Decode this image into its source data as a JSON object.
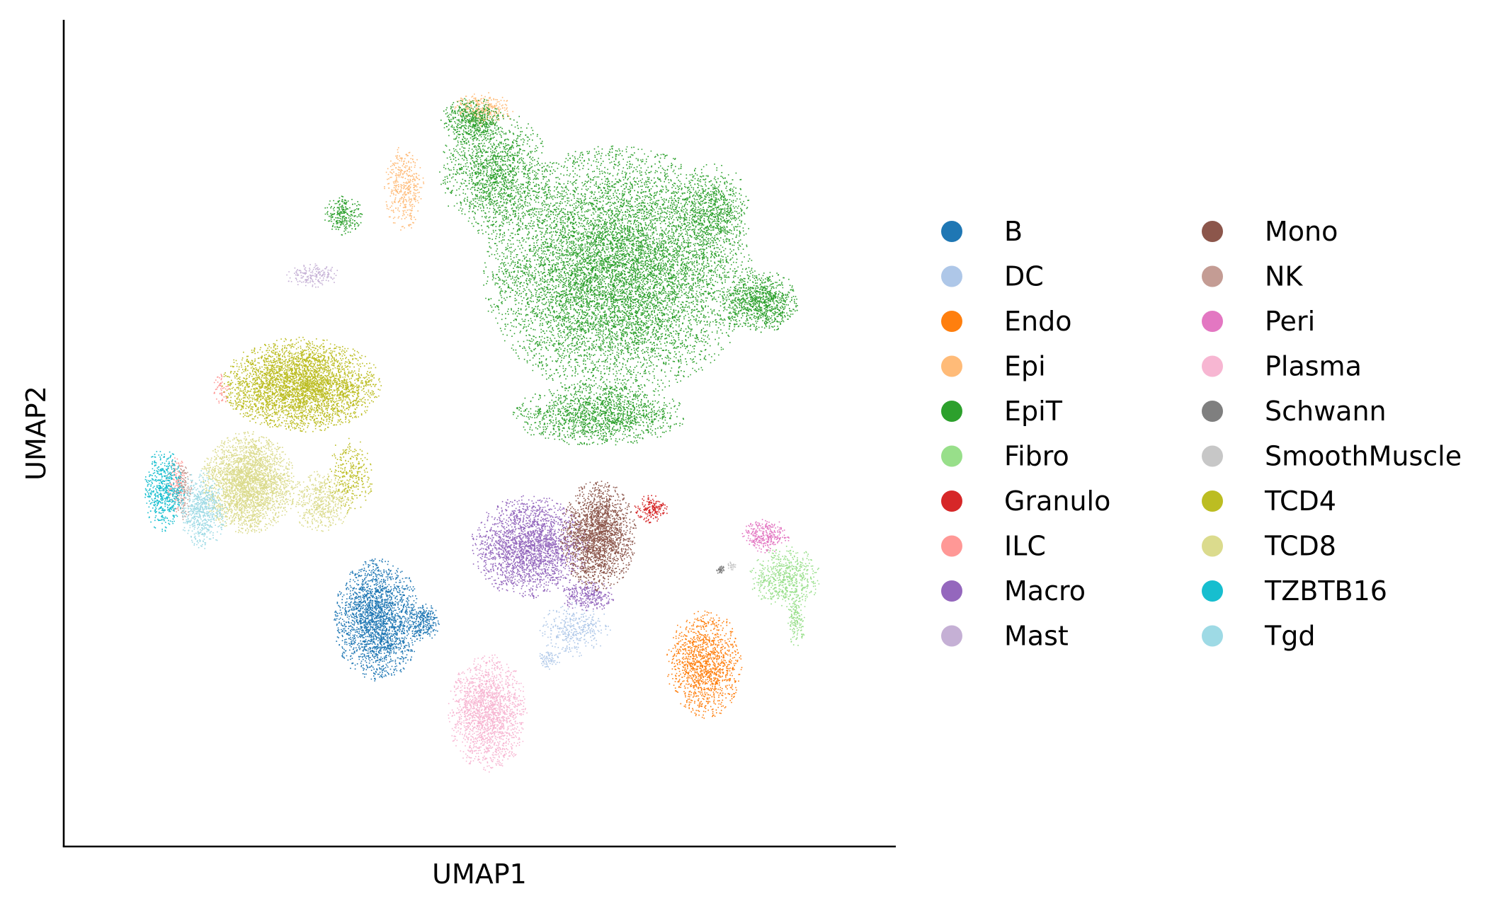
{
  "chart_data": {
    "type": "scatter",
    "xlabel": "UMAP1",
    "ylabel": "UMAP2",
    "xlim": [
      0,
      1
    ],
    "ylim": [
      0,
      1
    ],
    "grid": false,
    "ticks_shown": false,
    "legend_placement": "right",
    "legend_columns": 2,
    "series": [
      {
        "name": "B",
        "color": "#1f77b4",
        "clusters": [
          {
            "cx": 0.365,
            "cy": 0.258,
            "rx": 0.055,
            "ry": 0.078,
            "n": 2300
          },
          {
            "cx": 0.425,
            "cy": 0.255,
            "rx": 0.02,
            "ry": 0.025,
            "n": 250
          }
        ]
      },
      {
        "name": "DC",
        "color": "#aec7e8",
        "clusters": [
          {
            "cx": 0.625,
            "cy": 0.245,
            "rx": 0.045,
            "ry": 0.035,
            "n": 350
          },
          {
            "cx": 0.59,
            "cy": 0.205,
            "rx": 0.015,
            "ry": 0.012,
            "n": 70
          }
        ]
      },
      {
        "name": "Endo",
        "color": "#ff7f0e",
        "clusters": [
          {
            "cx": 0.795,
            "cy": 0.2,
            "rx": 0.048,
            "ry": 0.07,
            "n": 1300
          }
        ]
      },
      {
        "name": "Epi",
        "color": "#ffbb78",
        "clusters": [
          {
            "cx": 0.4,
            "cy": 0.83,
            "rx": 0.025,
            "ry": 0.055,
            "n": 400
          },
          {
            "cx": 0.505,
            "cy": 0.935,
            "rx": 0.04,
            "ry": 0.022,
            "n": 300
          }
        ]
      },
      {
        "name": "EpiT",
        "color": "#2ca02c",
        "clusters": [
          {
            "cx": 0.68,
            "cy": 0.72,
            "rx": 0.17,
            "ry": 0.16,
            "n": 9000
          },
          {
            "cx": 0.52,
            "cy": 0.85,
            "rx": 0.07,
            "ry": 0.08,
            "n": 1500
          },
          {
            "cx": 0.87,
            "cy": 0.68,
            "rx": 0.05,
            "ry": 0.04,
            "n": 900
          },
          {
            "cx": 0.655,
            "cy": 0.53,
            "rx": 0.11,
            "ry": 0.04,
            "n": 1500
          },
          {
            "cx": 0.805,
            "cy": 0.8,
            "rx": 0.05,
            "ry": 0.06,
            "n": 700
          },
          {
            "cx": 0.49,
            "cy": 0.92,
            "rx": 0.04,
            "ry": 0.03,
            "n": 500
          },
          {
            "cx": 0.32,
            "cy": 0.795,
            "rx": 0.025,
            "ry": 0.025,
            "n": 250
          }
        ]
      },
      {
        "name": "Fibro",
        "color": "#98df8a",
        "clusters": [
          {
            "cx": 0.9,
            "cy": 0.315,
            "rx": 0.045,
            "ry": 0.04,
            "n": 600
          },
          {
            "cx": 0.915,
            "cy": 0.26,
            "rx": 0.012,
            "ry": 0.035,
            "n": 150
          }
        ]
      },
      {
        "name": "Granulo",
        "color": "#d62728",
        "clusters": [
          {
            "cx": 0.725,
            "cy": 0.405,
            "rx": 0.022,
            "ry": 0.018,
            "n": 180
          }
        ]
      },
      {
        "name": "ILC",
        "color": "#ff9896",
        "clusters": [
          {
            "cx": 0.1,
            "cy": 0.44,
            "rx": 0.012,
            "ry": 0.04,
            "n": 150
          },
          {
            "cx": 0.16,
            "cy": 0.565,
            "rx": 0.01,
            "ry": 0.02,
            "n": 60
          }
        ]
      },
      {
        "name": "Macro",
        "color": "#9467bd",
        "clusters": [
          {
            "cx": 0.565,
            "cy": 0.355,
            "rx": 0.075,
            "ry": 0.065,
            "n": 2300
          },
          {
            "cx": 0.64,
            "cy": 0.29,
            "rx": 0.035,
            "ry": 0.02,
            "n": 300
          }
        ]
      },
      {
        "name": "Mast",
        "color": "#c5b0d5",
        "clusters": [
          {
            "cx": 0.28,
            "cy": 0.715,
            "rx": 0.035,
            "ry": 0.015,
            "n": 180
          }
        ]
      },
      {
        "name": "Mono",
        "color": "#8c564b",
        "clusters": [
          {
            "cx": 0.655,
            "cy": 0.37,
            "rx": 0.048,
            "ry": 0.07,
            "n": 2000
          }
        ]
      },
      {
        "name": "NK",
        "color": "#c49c94",
        "clusters": [
          {
            "cx": 0.11,
            "cy": 0.43,
            "rx": 0.012,
            "ry": 0.04,
            "n": 150
          }
        ]
      },
      {
        "name": "Peri",
        "color": "#e377c2",
        "clusters": [
          {
            "cx": 0.875,
            "cy": 0.37,
            "rx": 0.03,
            "ry": 0.022,
            "n": 300
          }
        ]
      },
      {
        "name": "Plasma",
        "color": "#f7b6d2",
        "clusters": [
          {
            "cx": 0.51,
            "cy": 0.135,
            "rx": 0.05,
            "ry": 0.075,
            "n": 1800
          }
        ]
      },
      {
        "name": "Schwann",
        "color": "#7f7f7f",
        "clusters": [
          {
            "cx": 0.815,
            "cy": 0.325,
            "rx": 0.006,
            "ry": 0.006,
            "n": 40
          }
        ]
      },
      {
        "name": "SmoothMuscle",
        "color": "#c7c7c7",
        "clusters": [
          {
            "cx": 0.83,
            "cy": 0.33,
            "rx": 0.006,
            "ry": 0.006,
            "n": 30
          }
        ]
      },
      {
        "name": "TCD4",
        "color": "#bcbd22",
        "clusters": [
          {
            "cx": 0.265,
            "cy": 0.57,
            "rx": 0.1,
            "ry": 0.06,
            "n": 3800
          },
          {
            "cx": 0.33,
            "cy": 0.45,
            "rx": 0.03,
            "ry": 0.05,
            "n": 300
          }
        ]
      },
      {
        "name": "TCD8",
        "color": "#dbdb8d",
        "clusters": [
          {
            "cx": 0.195,
            "cy": 0.44,
            "rx": 0.06,
            "ry": 0.065,
            "n": 2800
          },
          {
            "cx": 0.29,
            "cy": 0.415,
            "rx": 0.04,
            "ry": 0.04,
            "n": 500
          }
        ]
      },
      {
        "name": "TZBTB16",
        "color": "#17becf",
        "clusters": [
          {
            "cx": 0.085,
            "cy": 0.43,
            "rx": 0.025,
            "ry": 0.055,
            "n": 600
          }
        ]
      },
      {
        "name": "Tgd",
        "color": "#9edae5",
        "clusters": [
          {
            "cx": 0.135,
            "cy": 0.405,
            "rx": 0.03,
            "ry": 0.05,
            "n": 650
          }
        ]
      }
    ]
  }
}
